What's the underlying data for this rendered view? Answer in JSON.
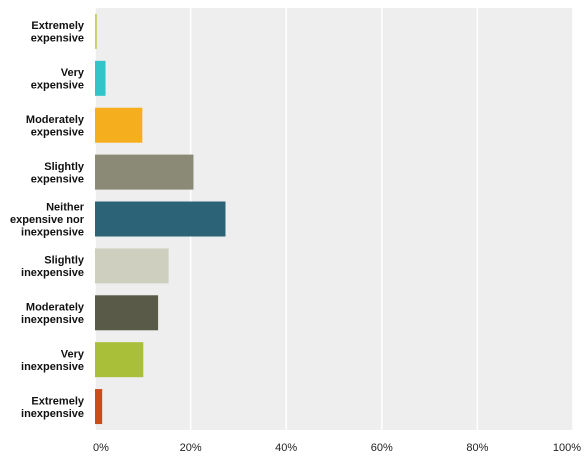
{
  "chart_data": {
    "type": "bar",
    "orientation": "horizontal",
    "title": "",
    "xlabel": "",
    "ylabel": "",
    "xlim": [
      0,
      100
    ],
    "grid": true,
    "categories": [
      [
        "Extremely",
        "expensive"
      ],
      [
        "Very",
        "expensive"
      ],
      [
        "Moderately",
        "expensive"
      ],
      [
        "Slightly",
        "expensive"
      ],
      [
        "Neither",
        "expensive nor",
        "inexpensive"
      ],
      [
        "Slightly",
        "inexpensive"
      ],
      [
        "Moderately",
        "inexpensive"
      ],
      [
        "Very",
        "inexpensive"
      ],
      [
        "Extremely",
        "inexpensive"
      ]
    ],
    "values": [
      0.4,
      2.2,
      9.9,
      20.6,
      27.3,
      15.4,
      13.2,
      10.1,
      1.5
    ],
    "colors": [
      "#c9d16a",
      "#33c4c9",
      "#f5ae1d",
      "#8a8a77",
      "#2c6376",
      "#cfcfbf",
      "#5a5a48",
      "#a9bf39",
      "#cc4a1e"
    ],
    "ticks": [
      "0%",
      "20%",
      "40%",
      "60%",
      "80%",
      "100%"
    ]
  }
}
